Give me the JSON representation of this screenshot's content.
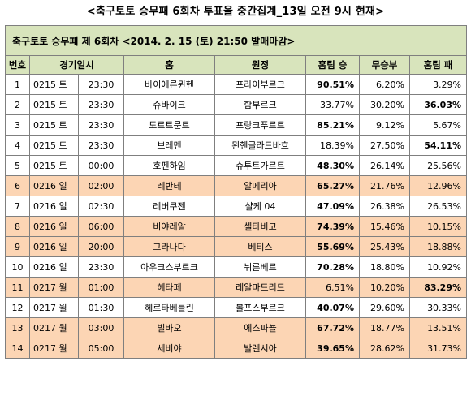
{
  "page_title": "<축구토토 승무패 6회차 투표율 중간집계_13일 오전 9시 현재>",
  "subtitle": "축구토토 승무패 제 6회차 <2014. 2. 15 (토) 21:50 발매마감>",
  "headers": {
    "no": "번호",
    "datetime": "경기일시",
    "home": "홈",
    "away": "원정",
    "home_win": "홈팀 승",
    "draw": "무승부",
    "home_lose": "홈팀 패"
  },
  "rows": [
    {
      "no": "1",
      "date": "0215 토",
      "time": "23:30",
      "home": "바이에른뮌헨",
      "away": "프라이부르크",
      "win": "90.51%",
      "draw": "6.20%",
      "lose": "3.29%",
      "bold": "win",
      "alt": false
    },
    {
      "no": "2",
      "date": "0215 토",
      "time": "23:30",
      "home": "슈바이크",
      "away": "함부르크",
      "win": "33.77%",
      "draw": "30.20%",
      "lose": "36.03%",
      "bold": "lose",
      "alt": false
    },
    {
      "no": "3",
      "date": "0215 토",
      "time": "23:30",
      "home": "도르트문트",
      "away": "프랑크푸르트",
      "win": "85.21%",
      "draw": "9.12%",
      "lose": "5.67%",
      "bold": "win",
      "alt": false
    },
    {
      "no": "4",
      "date": "0215 토",
      "time": "23:30",
      "home": "브레멘",
      "away": "묀헨글라드바흐",
      "win": "18.39%",
      "draw": "27.50%",
      "lose": "54.11%",
      "bold": "lose",
      "alt": false
    },
    {
      "no": "5",
      "date": "0215 토",
      "time": "00:00",
      "home": "호펜하임",
      "away": "슈투트가르트",
      "win": "48.30%",
      "draw": "26.14%",
      "lose": "25.56%",
      "bold": "win",
      "alt": false
    },
    {
      "no": "6",
      "date": "0216 일",
      "time": "02:00",
      "home": "레반테",
      "away": "알메리아",
      "win": "65.27%",
      "draw": "21.76%",
      "lose": "12.96%",
      "bold": "win",
      "alt": true
    },
    {
      "no": "7",
      "date": "0216 일",
      "time": "02:30",
      "home": "레버쿠젠",
      "away": "샬케 04",
      "win": "47.09%",
      "draw": "26.38%",
      "lose": "26.53%",
      "bold": "win",
      "alt": false
    },
    {
      "no": "8",
      "date": "0216 일",
      "time": "06:00",
      "home": "비야레알",
      "away": "셀타비고",
      "win": "74.39%",
      "draw": "15.46%",
      "lose": "10.15%",
      "bold": "win",
      "alt": true
    },
    {
      "no": "9",
      "date": "0216 일",
      "time": "20:00",
      "home": "그라나다",
      "away": "베티스",
      "win": "55.69%",
      "draw": "25.43%",
      "lose": "18.88%",
      "bold": "win",
      "alt": true
    },
    {
      "no": "10",
      "date": "0216 일",
      "time": "23:30",
      "home": "아우크스부르크",
      "away": "뉘른베르",
      "win": "70.28%",
      "draw": "18.80%",
      "lose": "10.92%",
      "bold": "win",
      "alt": false
    },
    {
      "no": "11",
      "date": "0217 월",
      "time": "01:00",
      "home": "헤타페",
      "away": "레알마드리드",
      "win": "6.51%",
      "draw": "10.20%",
      "lose": "83.29%",
      "bold": "lose",
      "alt": true
    },
    {
      "no": "12",
      "date": "0217 월",
      "time": "01:30",
      "home": "헤르타베를린",
      "away": "볼프스부르크",
      "win": "40.07%",
      "draw": "29.60%",
      "lose": "30.33%",
      "bold": "win",
      "alt": false
    },
    {
      "no": "13",
      "date": "0217 월",
      "time": "03:00",
      "home": "빌바오",
      "away": "에스파뇰",
      "win": "67.72%",
      "draw": "18.77%",
      "lose": "13.51%",
      "bold": "win",
      "alt": true
    },
    {
      "no": "14",
      "date": "0217 월",
      "time": "05:00",
      "home": "세비야",
      "away": "발렌시아",
      "win": "39.65%",
      "draw": "28.62%",
      "lose": "31.73%",
      "bold": "win",
      "alt": true
    }
  ]
}
